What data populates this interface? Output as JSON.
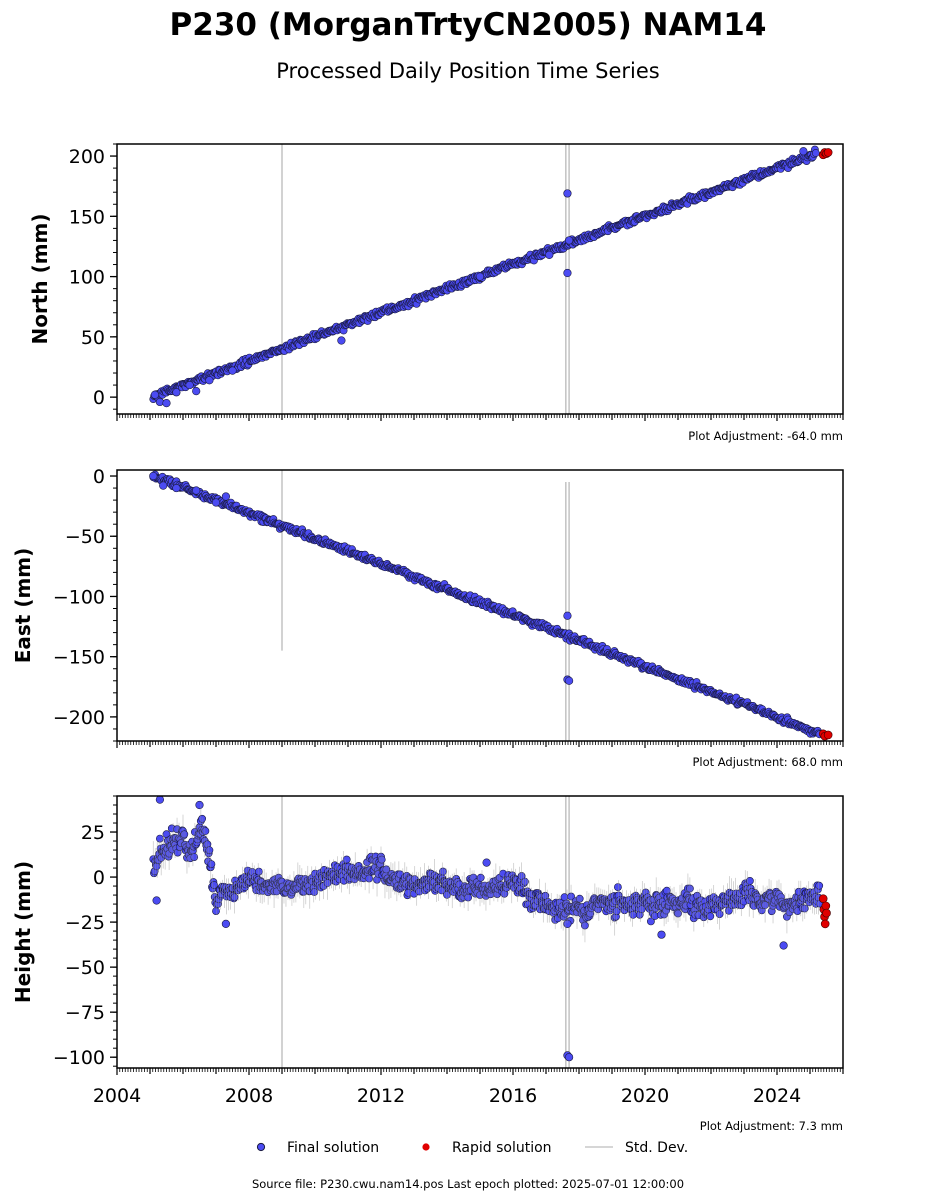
{
  "title": "P230 (MorganTrtyCN2005) NAM14",
  "subtitle": "Processed Daily Position Time Series",
  "source_text": "Source file: P230.cwu.nam14.pos  Last epoch plotted: 2025-07-01 12:00:00",
  "colors": {
    "final": "#4b4bf2",
    "rapid": "#e00000",
    "stddev": "#b4b4b4",
    "edge": "#1a1a40"
  },
  "legend": [
    {
      "label": "Final solution",
      "type": "dot",
      "color": "#4b4bf2"
    },
    {
      "label": "Rapid solution",
      "type": "dot",
      "color": "#e00000"
    },
    {
      "label": "Std. Dev.",
      "type": "line",
      "color": "#c8c8c8"
    }
  ],
  "chart_data": [
    {
      "type": "scatter",
      "ylabel": "North (mm)",
      "adjustment_text": "Plot Adjustment: -64.0 mm",
      "xlim": [
        2004.0,
        2026.0
      ],
      "ylim": [
        -14.0,
        210.0
      ],
      "yticks": [
        0,
        50,
        100,
        150,
        200
      ],
      "grid": false,
      "final_trend": {
        "x": [
          2005.1,
          2025.2
        ],
        "y": [
          1.0,
          202.0
        ],
        "noise_mm": 2.0
      },
      "final_points": [
        {
          "x": 2005.15,
          "y": 2
        },
        {
          "x": 2005.3,
          "y": -4
        },
        {
          "x": 2005.5,
          "y": -5
        },
        {
          "x": 2005.8,
          "y": 4
        },
        {
          "x": 2006.2,
          "y": 10
        },
        {
          "x": 2006.4,
          "y": 5
        },
        {
          "x": 2006.8,
          "y": 14
        },
        {
          "x": 2007.5,
          "y": 22
        },
        {
          "x": 2010.8,
          "y": 47
        },
        {
          "x": 2015.0,
          "y": 100
        },
        {
          "x": 2017.1,
          "y": 118
        },
        {
          "x": 2017.65,
          "y": 169
        },
        {
          "x": 2017.65,
          "y": 103
        },
        {
          "x": 2017.7,
          "y": 130
        },
        {
          "x": 2024.8,
          "y": 204
        }
      ],
      "rapid_points": [
        {
          "x": 2025.4,
          "y": 201
        },
        {
          "x": 2025.45,
          "y": 203
        },
        {
          "x": 2025.5,
          "y": 202
        },
        {
          "x": 2025.55,
          "y": 203
        }
      ],
      "stddev_bars": [
        {
          "x": 2009.0,
          "low": -14,
          "high": 210
        },
        {
          "x": 2017.6,
          "low": -14,
          "high": 210
        },
        {
          "x": 2017.7,
          "low": -14,
          "high": 210
        }
      ]
    },
    {
      "type": "scatter",
      "ylabel": "East (mm)",
      "adjustment_text": "Plot Adjustment: 68.0 mm",
      "xlim": [
        2004.0,
        2026.0
      ],
      "ylim": [
        -220.0,
        5.0
      ],
      "yticks": [
        0,
        -50,
        -100,
        -150,
        -200
      ],
      "grid": false,
      "final_trend": {
        "x": [
          2005.1,
          2025.3
        ],
        "y": [
          0.0,
          -214.0
        ],
        "noise_mm": 2.0
      },
      "final_points": [
        {
          "x": 2005.1,
          "y": 0
        },
        {
          "x": 2005.4,
          "y": -8
        },
        {
          "x": 2005.8,
          "y": -10
        },
        {
          "x": 2006.4,
          "y": -12
        },
        {
          "x": 2007.0,
          "y": -22
        },
        {
          "x": 2007.3,
          "y": -17
        },
        {
          "x": 2017.65,
          "y": -116
        },
        {
          "x": 2017.65,
          "y": -169
        },
        {
          "x": 2017.7,
          "y": -170
        }
      ],
      "rapid_points": [
        {
          "x": 2025.4,
          "y": -214
        },
        {
          "x": 2025.45,
          "y": -216
        },
        {
          "x": 2025.55,
          "y": -215
        }
      ],
      "stddev_bars": [
        {
          "x": 2009.0,
          "low": -145,
          "high": 5
        },
        {
          "x": 2017.6,
          "low": -220,
          "high": -5
        },
        {
          "x": 2017.7,
          "low": -220,
          "high": -5
        }
      ]
    },
    {
      "type": "scatter",
      "ylabel": "Height (mm)",
      "adjustment_text": "Plot Adjustment: 7.3 mm",
      "xlim": [
        2004.0,
        2026.0
      ],
      "ylim": [
        -106.0,
        45.0
      ],
      "yticks": [
        25,
        0,
        -25,
        -50,
        -75,
        -100
      ],
      "xticks": [
        2004,
        2008,
        2012,
        2016,
        2020,
        2024
      ],
      "grid": false,
      "final_noise_profile": [
        {
          "x": 2005.1,
          "mean": 5,
          "spread": 12
        },
        {
          "x": 2005.5,
          "mean": 18,
          "spread": 14
        },
        {
          "x": 2006.2,
          "mean": 12,
          "spread": 14
        },
        {
          "x": 2006.6,
          "mean": 25,
          "spread": 12
        },
        {
          "x": 2007.0,
          "mean": -10,
          "spread": 14
        },
        {
          "x": 2008.0,
          "mean": -5,
          "spread": 10
        },
        {
          "x": 2016.0,
          "mean": -5,
          "spread": 12
        },
        {
          "x": 2017.0,
          "mean": -20,
          "spread": 12
        },
        {
          "x": 2020.0,
          "mean": -12,
          "spread": 12
        },
        {
          "x": 2025.3,
          "mean": -15,
          "spread": 12
        }
      ],
      "final_points": [
        {
          "x": 2005.3,
          "y": 43
        },
        {
          "x": 2005.2,
          "y": -13
        },
        {
          "x": 2006.5,
          "y": 40
        },
        {
          "x": 2007.3,
          "y": -26
        },
        {
          "x": 2015.2,
          "y": 8
        },
        {
          "x": 2017.65,
          "y": -99
        },
        {
          "x": 2017.7,
          "y": -100
        },
        {
          "x": 2017.65,
          "y": -26
        },
        {
          "x": 2020.5,
          "y": -32
        },
        {
          "x": 2024.2,
          "y": -38
        }
      ],
      "rapid_points": [
        {
          "x": 2025.4,
          "y": -12
        },
        {
          "x": 2025.42,
          "y": -18
        },
        {
          "x": 2025.44,
          "y": -22
        },
        {
          "x": 2025.46,
          "y": -26
        },
        {
          "x": 2025.48,
          "y": -16
        },
        {
          "x": 2025.5,
          "y": -20
        }
      ],
      "stddev_bars": [
        {
          "x": 2009.0,
          "low": -106,
          "high": 45
        },
        {
          "x": 2017.6,
          "low": -106,
          "high": 45
        },
        {
          "x": 2017.7,
          "low": -106,
          "high": 45
        }
      ]
    }
  ]
}
